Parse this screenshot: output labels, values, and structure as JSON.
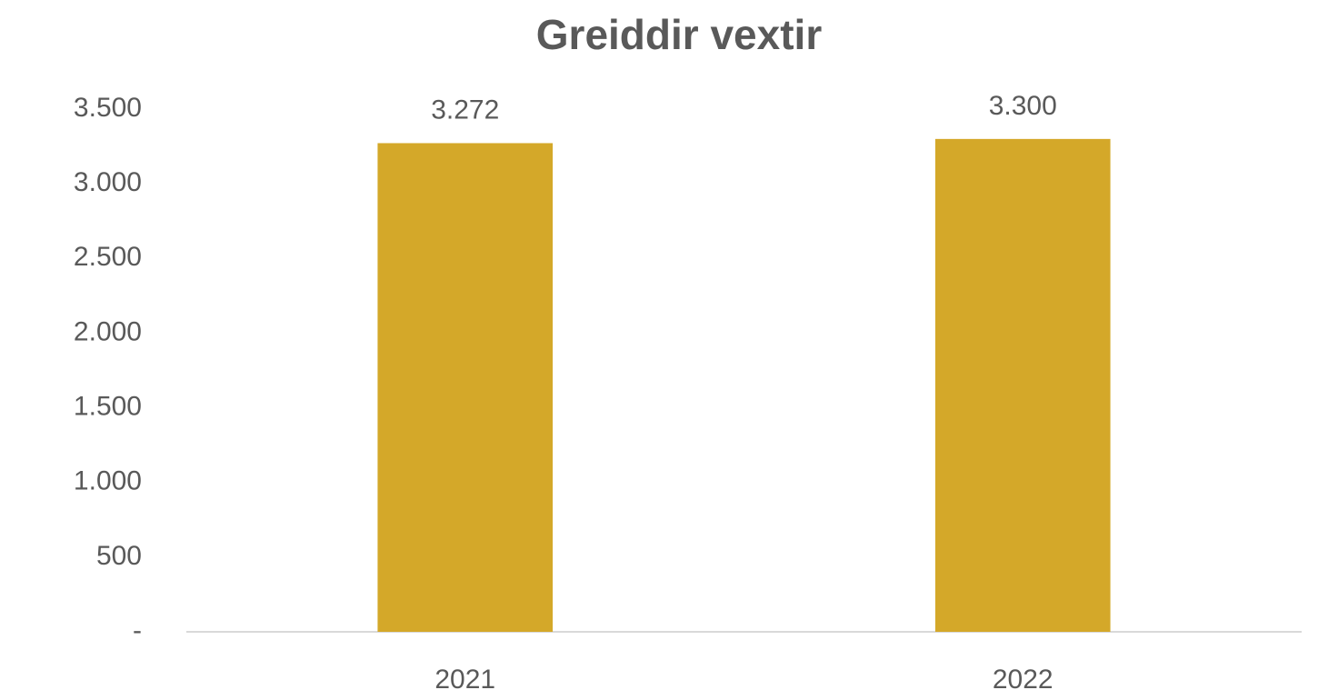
{
  "chart_data": {
    "type": "bar",
    "title": "Greiddir vextir",
    "categories": [
      "2021",
      "2022"
    ],
    "values": [
      3272,
      3300
    ],
    "value_labels": [
      "3.272",
      "3.300"
    ],
    "color": "#d4a829",
    "ylim": [
      0,
      3500
    ],
    "yticks": [
      {
        "value": 0,
        "label": "-"
      },
      500,
      {
        "value": 1000,
        "label": "1.000"
      },
      {
        "value": 1500,
        "label": "1.500"
      },
      {
        "value": 2000,
        "label": "2.000"
      },
      {
        "value": 2500,
        "label": "2.500"
      },
      {
        "value": 3000,
        "label": "3.000"
      },
      {
        "value": 3500,
        "label": "3.500"
      }
    ],
    "grid": false
  }
}
